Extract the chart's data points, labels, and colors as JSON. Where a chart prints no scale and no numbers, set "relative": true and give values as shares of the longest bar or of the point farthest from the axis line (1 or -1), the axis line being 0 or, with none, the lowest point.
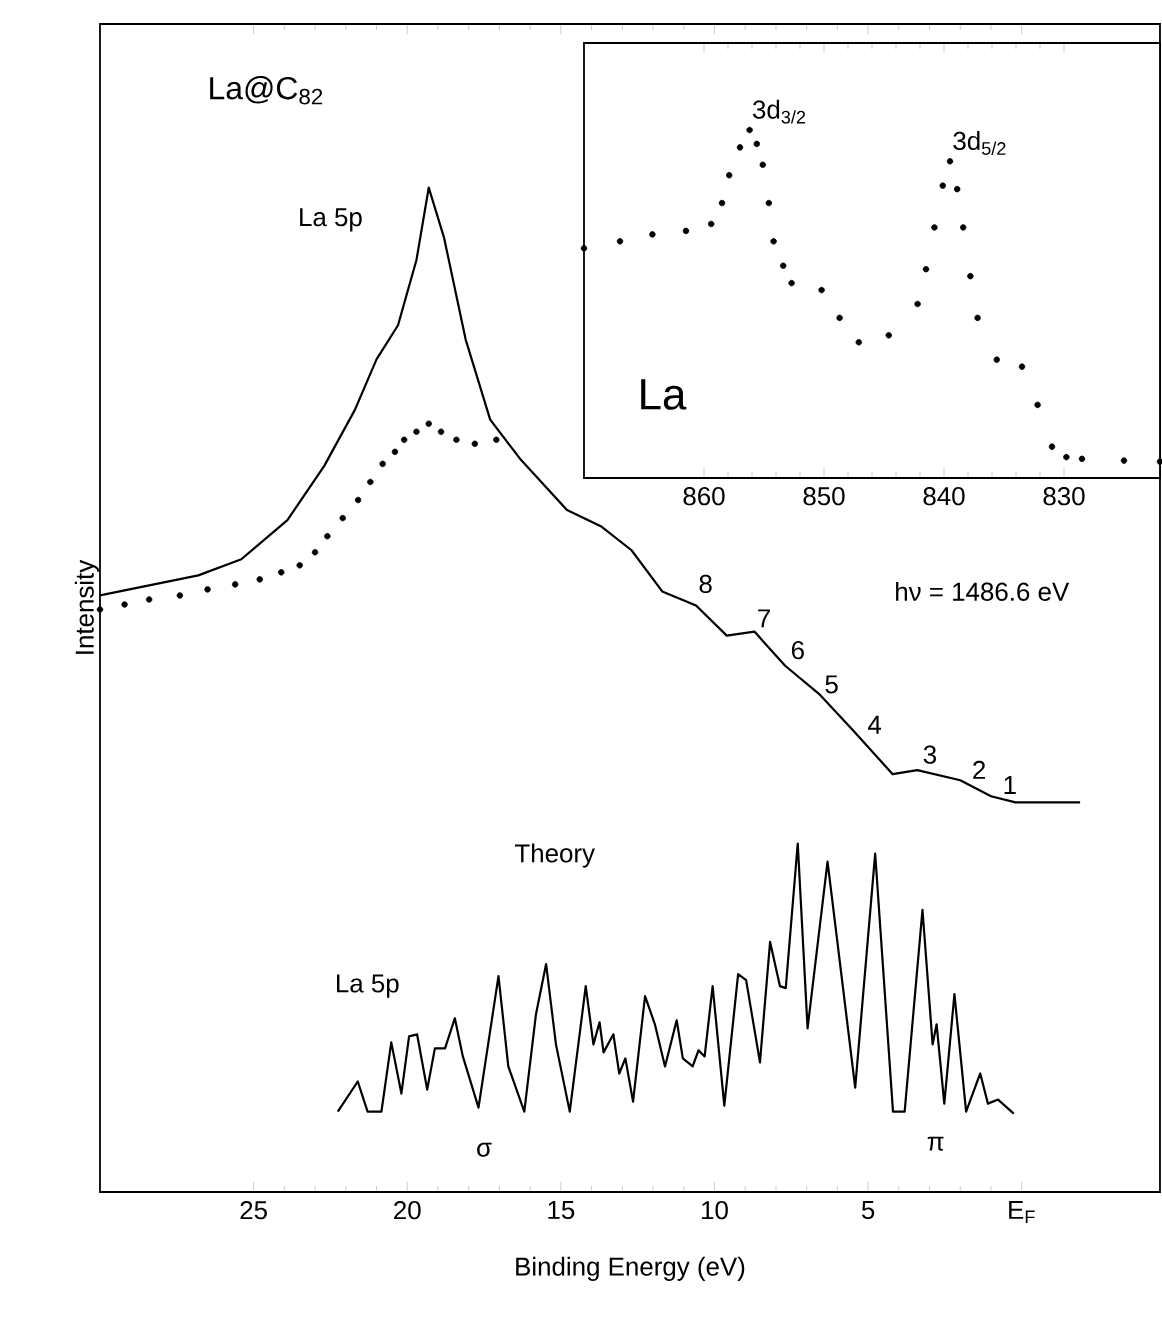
{
  "chart_data": [
    {
      "type": "line",
      "relative": true,
      "xlabel": "Binding Energy (eV)",
      "ylabel": "Intensity",
      "xlim": [
        30,
        -4.5
      ],
      "xticks": [
        25,
        20,
        15,
        10,
        5,
        {
          "value": 0,
          "label": "E$_{F}$"
        }
      ],
      "series": [
        {
          "type": "line",
          "color": "#000000",
          "line_style": "solid",
          "x": [
            30.0,
            26.8,
            25.4,
            23.9,
            22.7,
            21.7,
            21.0,
            20.3,
            19.7,
            19.3,
            18.8,
            18.1,
            17.3,
            16.3,
            14.8,
            13.7,
            12.7,
            11.7,
            10.6,
            9.6,
            8.7,
            7.7,
            6.6,
            5.5,
            4.2,
            3.4,
            2.0,
            1.0,
            0.2,
            -1.9
          ],
          "values": [
            0.594,
            0.614,
            0.63,
            0.669,
            0.723,
            0.779,
            0.829,
            0.863,
            0.928,
            1.0,
            0.95,
            0.849,
            0.769,
            0.729,
            0.679,
            0.663,
            0.639,
            0.598,
            0.584,
            0.554,
            0.558,
            0.524,
            0.496,
            0.46,
            0.416,
            0.42,
            0.41,
            0.394,
            0.388,
            0.388
          ]
        },
        {
          "type": "scatter",
          "color": "#000000",
          "marker": "circle",
          "x": [
            30.0,
            29.2,
            28.4,
            27.4,
            26.5,
            25.6,
            24.8,
            24.1,
            23.5,
            23.0,
            22.6,
            22.1,
            21.6,
            21.2,
            20.8,
            20.4,
            20.1,
            19.7,
            19.3,
            18.9,
            18.4,
            17.8,
            17.1
          ],
          "values": [
            0.58,
            0.585,
            0.59,
            0.594,
            0.6,
            0.605,
            0.61,
            0.617,
            0.624,
            0.637,
            0.653,
            0.671,
            0.689,
            0.707,
            0.725,
            0.737,
            0.749,
            0.757,
            0.765,
            0.757,
            0.749,
            0.745,
            0.749
          ]
        },
        {
          "type": "line",
          "color": "#000000",
          "line_style": "solid",
          "x": [
            22.26,
            21.61,
            21.29,
            20.84,
            20.52,
            20.19,
            19.94,
            19.68,
            19.35,
            19.1,
            18.77,
            18.45,
            18.19,
            17.68,
            17.03,
            16.71,
            16.19,
            15.81,
            15.48,
            15.16,
            14.71,
            14.19,
            13.94,
            13.74,
            13.61,
            13.29,
            13.1,
            12.9,
            12.65,
            12.26,
            11.94,
            11.61,
            11.23,
            11.03,
            10.71,
            10.52,
            10.32,
            10.06,
            9.68,
            9.23,
            8.97,
            8.52,
            8.19,
            7.87,
            7.68,
            7.29,
            6.97,
            6.32,
            5.42,
            4.77,
            4.19,
            3.81,
            3.23,
            2.9,
            2.77,
            2.52,
            2.19,
            1.81,
            1.35,
            1.1,
            0.77,
            0.26
          ],
          "values": [
            0.08,
            0.11,
            0.08,
            0.08,
            0.149,
            0.098,
            0.155,
            0.157,
            0.102,
            0.143,
            0.143,
            0.173,
            0.135,
            0.084,
            0.215,
            0.125,
            0.08,
            0.177,
            0.227,
            0.147,
            0.08,
            0.205,
            0.147,
            0.169,
            0.139,
            0.157,
            0.118,
            0.133,
            0.09,
            0.195,
            0.167,
            0.125,
            0.171,
            0.133,
            0.125,
            0.141,
            0.135,
            0.205,
            0.086,
            0.217,
            0.211,
            0.129,
            0.249,
            0.205,
            0.203,
            0.347,
            0.163,
            0.329,
            0.104,
            0.337,
            0.08,
            0.08,
            0.281,
            0.147,
            0.167,
            0.088,
            0.197,
            0.08,
            0.118,
            0.088,
            0.092,
            0.078
          ]
        }
      ],
      "annotations": [
        "La@C$_{82}$",
        "La 5p",
        "hν = 1486.6 eV",
        "Theory",
        "La 5p",
        "σ",
        "π",
        {
          "text": "8",
          "x": 10.6,
          "y": 0.59
        },
        {
          "text": "7",
          "x": 8.7,
          "y": 0.556
        },
        {
          "text": "6",
          "x": 7.6,
          "y": 0.524
        },
        {
          "text": "5",
          "x": 6.5,
          "y": 0.49
        },
        {
          "text": "4",
          "x": 5.1,
          "y": 0.45
        },
        {
          "text": "3",
          "x": 3.3,
          "y": 0.42
        },
        {
          "text": "2",
          "x": 1.7,
          "y": 0.405
        },
        {
          "text": "1",
          "x": 0.7,
          "y": 0.39
        }
      ]
    },
    {
      "type": "scatter",
      "relative": true,
      "marker": "circle",
      "color": "#000000",
      "xlim": [
        870,
        822
      ],
      "xticks": [
        860,
        850,
        840,
        830
      ],
      "x": [
        870,
        867,
        864.3,
        861.5,
        859.4,
        858.5,
        857.9,
        857.0,
        856.2,
        855.6,
        855.1,
        854.6,
        854.2,
        853.4,
        852.7,
        850.2,
        848.7,
        847.1,
        844.6,
        842.2,
        841.5,
        840.8,
        840.1,
        839.5,
        838.9,
        838.4,
        837.8,
        837.2,
        835.6,
        833.5,
        832.2,
        831.0,
        829.8,
        828.5,
        825,
        822
      ],
      "values": [
        0.66,
        0.68,
        0.7,
        0.71,
        0.73,
        0.79,
        0.87,
        0.95,
        1.0,
        0.96,
        0.9,
        0.79,
        0.68,
        0.61,
        0.56,
        0.54,
        0.46,
        0.39,
        0.41,
        0.5,
        0.6,
        0.72,
        0.84,
        0.91,
        0.83,
        0.72,
        0.58,
        0.46,
        0.34,
        0.32,
        0.21,
        0.09,
        0.06,
        0.055,
        0.05,
        0.047
      ],
      "annotations": [
        {
          "text": "3d$_{3/2}$",
          "x": 856.2,
          "y": 1.0
        },
        {
          "text": "3d$_{5/2}$",
          "x": 839.5,
          "y": 0.91
        },
        "La"
      ]
    }
  ]
}
